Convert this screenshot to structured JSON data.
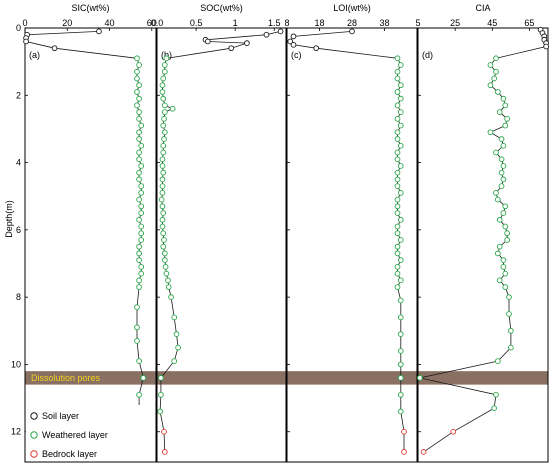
{
  "figure": {
    "ylabel": "Depth(m)",
    "band_label": "Dissolution pores",
    "colors": {
      "soil": "#1a1a1a",
      "weathered": "#2aa84a",
      "bedrock": "#e03a2a",
      "band": "#8a7062",
      "band_text": "#f2d21a",
      "line": "#1a1a1a"
    },
    "legend": [
      {
        "key": "soil",
        "label": "Soil layer"
      },
      {
        "key": "weathered",
        "label": "Weathered layer"
      },
      {
        "key": "bedrock",
        "label": "Bedrock layer"
      }
    ]
  },
  "chart_data": [
    {
      "type": "line",
      "panel": "(a)",
      "title": "SIC(wt%)",
      "xlim": [
        0,
        62
      ],
      "xticks": [
        0,
        20,
        40,
        60
      ],
      "ylim": [
        0,
        12.9
      ],
      "yticks": [
        0,
        2,
        4,
        6,
        8,
        10,
        12
      ],
      "band": [
        10.2,
        10.6
      ],
      "series": [
        {
          "layer": "soil",
          "points": [
            [
              35,
              0.1
            ],
            [
              1,
              0.2
            ],
            [
              0.5,
              0.3
            ],
            [
              0.5,
              0.4
            ],
            [
              14,
              0.6
            ]
          ]
        },
        {
          "layer": "weathered",
          "points": [
            [
              53,
              0.9
            ],
            [
              54,
              1.1
            ],
            [
              53,
              1.3
            ],
            [
              53,
              1.5
            ],
            [
              54,
              1.7
            ],
            [
              53,
              1.9
            ],
            [
              54,
              2.1
            ],
            [
              53,
              2.3
            ],
            [
              54,
              2.5
            ],
            [
              54,
              2.7
            ],
            [
              55,
              2.9
            ],
            [
              54,
              3.1
            ],
            [
              54,
              3.3
            ],
            [
              55,
              3.5
            ],
            [
              54,
              3.7
            ],
            [
              54,
              3.9
            ],
            [
              55,
              4.1
            ],
            [
              54,
              4.3
            ],
            [
              54,
              4.5
            ],
            [
              55,
              4.7
            ],
            [
              55,
              4.9
            ],
            [
              54,
              5.1
            ],
            [
              55,
              5.3
            ],
            [
              55,
              5.5
            ],
            [
              54,
              5.7
            ],
            [
              55,
              5.9
            ],
            [
              55,
              6.1
            ],
            [
              55,
              6.3
            ],
            [
              54,
              6.5
            ],
            [
              54,
              6.7
            ],
            [
              54,
              6.9
            ],
            [
              55,
              7.1
            ],
            [
              55,
              7.3
            ],
            [
              54,
              7.5
            ],
            [
              54,
              7.7
            ],
            [
              53,
              8.3
            ],
            [
              53,
              8.9
            ],
            [
              53,
              9.3
            ],
            [
              54,
              9.9
            ],
            [
              56,
              10.4
            ],
            [
              54,
              10.9
            ],
            [
              54,
              11.4
            ]
          ]
        },
        {
          "layer": "bedrock",
          "points": [
            [
              54,
              12.0
            ],
            [
              54,
              12.6
            ]
          ]
        }
      ]
    },
    {
      "type": "line",
      "panel": "(b)",
      "title": "SOC(wt%)",
      "xlim": [
        0,
        1.65
      ],
      "xticks": [
        0.0,
        0.5,
        1.0,
        1.5
      ],
      "xticklabels": [
        "0.0",
        "0.5",
        "1",
        "1.5"
      ],
      "ylim": [
        0,
        12.9
      ],
      "band": [
        10.2,
        10.6
      ],
      "series": [
        {
          "layer": "soil",
          "points": [
            [
              1.58,
              0.1
            ],
            [
              1.4,
              0.2
            ],
            [
              0.62,
              0.35
            ],
            [
              0.65,
              0.4
            ],
            [
              1.15,
              0.45
            ],
            [
              0.95,
              0.6
            ]
          ]
        },
        {
          "layer": "weathered",
          "points": [
            [
              0.12,
              0.9
            ],
            [
              0.1,
              1.1
            ],
            [
              0.1,
              1.3
            ],
            [
              0.08,
              1.5
            ],
            [
              0.07,
              1.7
            ],
            [
              0.07,
              1.9
            ],
            [
              0.08,
              2.1
            ],
            [
              0.1,
              2.3
            ],
            [
              0.2,
              2.4
            ],
            [
              0.1,
              2.5
            ],
            [
              0.09,
              2.7
            ],
            [
              0.08,
              2.9
            ],
            [
              0.1,
              3.1
            ],
            [
              0.09,
              3.3
            ],
            [
              0.08,
              3.5
            ],
            [
              0.08,
              3.7
            ],
            [
              0.07,
              3.9
            ],
            [
              0.07,
              4.1
            ],
            [
              0.08,
              4.3
            ],
            [
              0.07,
              4.5
            ],
            [
              0.07,
              4.7
            ],
            [
              0.07,
              4.9
            ],
            [
              0.06,
              5.1
            ],
            [
              0.07,
              5.3
            ],
            [
              0.08,
              5.5
            ],
            [
              0.07,
              5.7
            ],
            [
              0.07,
              5.9
            ],
            [
              0.08,
              6.1
            ],
            [
              0.09,
              6.3
            ],
            [
              0.08,
              6.5
            ],
            [
              0.1,
              6.7
            ],
            [
              0.1,
              6.9
            ],
            [
              0.11,
              7.1
            ],
            [
              0.12,
              7.3
            ],
            [
              0.14,
              7.5
            ],
            [
              0.15,
              7.7
            ],
            [
              0.18,
              8.0
            ],
            [
              0.22,
              8.6
            ],
            [
              0.25,
              9.1
            ],
            [
              0.27,
              9.5
            ],
            [
              0.22,
              9.9
            ],
            [
              0.05,
              10.4
            ],
            [
              0.05,
              10.9
            ],
            [
              0.04,
              11.4
            ]
          ]
        },
        {
          "layer": "bedrock",
          "points": [
            [
              0.09,
              12.0
            ],
            [
              0.1,
              12.6
            ]
          ]
        }
      ]
    },
    {
      "type": "line",
      "panel": "(c)",
      "title": "LOI(wt%)",
      "xlim": [
        8,
        48
      ],
      "xticks": [
        8,
        18,
        28,
        38
      ],
      "ylim": [
        0,
        12.9
      ],
      "band": [
        10.2,
        10.6
      ],
      "series": [
        {
          "layer": "soil",
          "points": [
            [
              28,
              0.1
            ],
            [
              10,
              0.25
            ],
            [
              9,
              0.4
            ],
            [
              10,
              0.5
            ],
            [
              17,
              0.6
            ]
          ]
        },
        {
          "layer": "weathered",
          "points": [
            [
              42,
              0.9
            ],
            [
              43,
              1.1
            ],
            [
              42,
              1.3
            ],
            [
              42,
              1.5
            ],
            [
              43,
              1.7
            ],
            [
              42,
              1.9
            ],
            [
              43,
              2.1
            ],
            [
              42,
              2.3
            ],
            [
              43,
              2.5
            ],
            [
              42,
              2.7
            ],
            [
              43,
              2.9
            ],
            [
              42,
              3.1
            ],
            [
              42,
              3.3
            ],
            [
              43,
              3.5
            ],
            [
              42,
              3.7
            ],
            [
              42,
              3.9
            ],
            [
              43,
              4.1
            ],
            [
              42,
              4.3
            ],
            [
              42,
              4.5
            ],
            [
              42,
              4.7
            ],
            [
              43,
              4.9
            ],
            [
              42,
              5.1
            ],
            [
              42,
              5.3
            ],
            [
              42,
              5.5
            ],
            [
              43,
              5.7
            ],
            [
              42,
              5.9
            ],
            [
              42,
              6.1
            ],
            [
              43,
              6.3
            ],
            [
              42,
              6.5
            ],
            [
              42,
              6.7
            ],
            [
              43,
              6.9
            ],
            [
              42,
              7.1
            ],
            [
              42,
              7.3
            ],
            [
              43,
              7.5
            ],
            [
              42,
              7.7
            ],
            [
              43,
              8.1
            ],
            [
              43,
              8.6
            ],
            [
              43,
              9.1
            ],
            [
              43,
              9.6
            ],
            [
              43,
              10.0
            ],
            [
              43,
              10.4
            ],
            [
              43,
              10.9
            ],
            [
              43,
              11.4
            ]
          ]
        },
        {
          "layer": "bedrock",
          "points": [
            [
              44,
              12.0
            ],
            [
              44,
              12.6
            ]
          ]
        }
      ]
    },
    {
      "type": "line",
      "panel": "(d)",
      "title": "CIA",
      "xlim": [
        5,
        75
      ],
      "xticks": [
        5,
        25,
        45,
        65
      ],
      "ylim": [
        0,
        12.9
      ],
      "band": [
        10.2,
        10.6
      ],
      "series": [
        {
          "layer": "soil",
          "points": [
            [
              71,
              0.05
            ],
            [
              72,
              0.15
            ],
            [
              73,
              0.25
            ],
            [
              73,
              0.35
            ],
            [
              74,
              0.45
            ],
            [
              74,
              0.55
            ]
          ]
        },
        {
          "layer": "weathered",
          "points": [
            [
              47,
              0.9
            ],
            [
              44,
              1.1
            ],
            [
              47,
              1.3
            ],
            [
              46,
              1.5
            ],
            [
              44,
              1.7
            ],
            [
              48,
              1.9
            ],
            [
              51,
              2.1
            ],
            [
              52,
              2.3
            ],
            [
              49,
              2.5
            ],
            [
              53,
              2.7
            ],
            [
              52,
              2.9
            ],
            [
              44,
              3.1
            ],
            [
              50,
              3.3
            ],
            [
              51,
              3.5
            ],
            [
              47,
              3.7
            ],
            [
              50,
              3.9
            ],
            [
              51,
              4.1
            ],
            [
              50,
              4.3
            ],
            [
              51,
              4.5
            ],
            [
              50,
              4.7
            ],
            [
              47,
              4.9
            ],
            [
              48,
              5.1
            ],
            [
              52,
              5.3
            ],
            [
              51,
              5.5
            ],
            [
              49,
              5.7
            ],
            [
              52,
              5.9
            ],
            [
              53,
              6.1
            ],
            [
              53,
              6.3
            ],
            [
              49,
              6.5
            ],
            [
              48,
              6.7
            ],
            [
              51,
              6.9
            ],
            [
              51,
              7.1
            ],
            [
              52,
              7.3
            ],
            [
              49,
              7.5
            ],
            [
              52,
              7.7
            ],
            [
              54,
              8.0
            ],
            [
              54,
              8.5
            ],
            [
              55,
              9.0
            ],
            [
              55,
              9.5
            ],
            [
              48,
              9.9
            ],
            [
              6,
              10.4
            ],
            [
              47,
              10.9
            ],
            [
              46,
              11.3
            ]
          ]
        },
        {
          "layer": "bedrock",
          "points": [
            [
              24,
              12.0
            ],
            [
              8,
              12.6
            ]
          ]
        }
      ]
    }
  ]
}
